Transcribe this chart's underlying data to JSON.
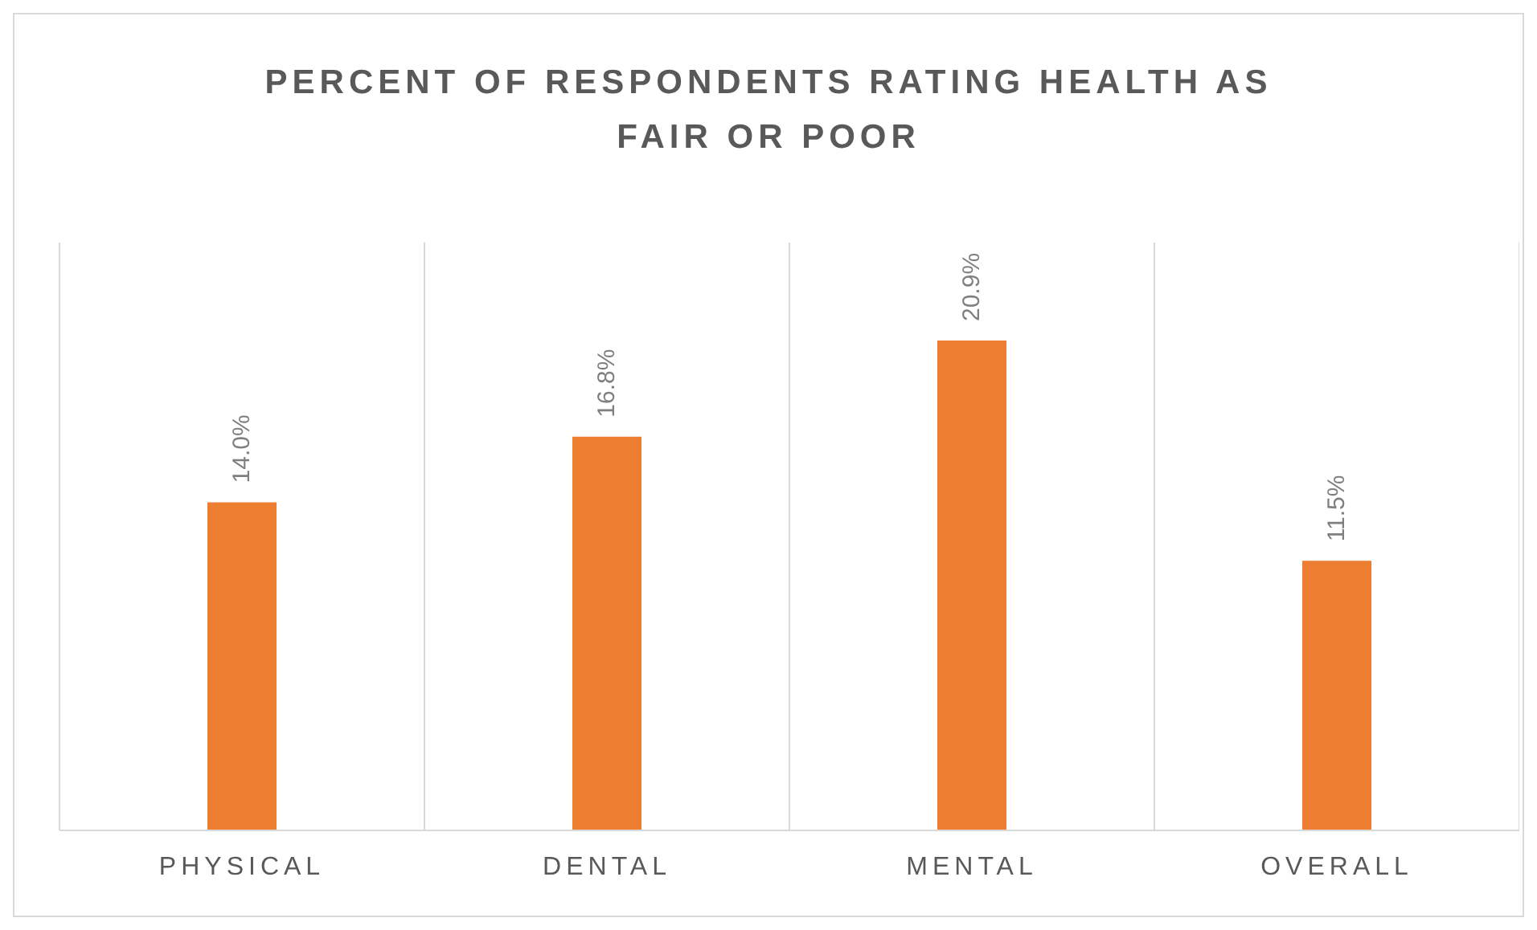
{
  "chart_data": {
    "type": "bar",
    "title": "PERCENT OF RESPONDENTS RATING HEALTH AS FAIR OR POOR",
    "categories": [
      "PHYSICAL",
      "DENTAL",
      "MENTAL",
      "OVERALL"
    ],
    "values": [
      14.0,
      16.8,
      20.9,
      11.5
    ],
    "value_labels": [
      "14.0%",
      "16.8%",
      "20.9%",
      "11.5%"
    ],
    "color": "#ed7d31",
    "grid": "x"
  }
}
